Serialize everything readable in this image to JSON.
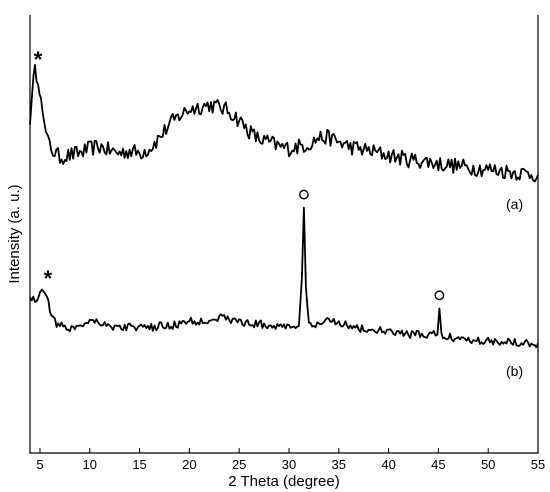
{
  "chart_data": {
    "type": "line",
    "xlabel": "2 Theta (degree)",
    "ylabel": "Intensity (a. u.)",
    "xlim": [
      4,
      55
    ],
    "ylim": [
      0,
      1
    ],
    "xticks": [
      5,
      10,
      15,
      20,
      25,
      30,
      35,
      40,
      45,
      50,
      55
    ],
    "grid": false,
    "series": [
      {
        "name": "(a)",
        "x": [
          4.0,
          4.2,
          4.5,
          4.8,
          5.1,
          5.4,
          5.8,
          6.3,
          7.0,
          8.0,
          9.0,
          10.0,
          11.0,
          12.0,
          13.0,
          14.0,
          15.0,
          16.0,
          17.0,
          18.0,
          19.0,
          20.0,
          21.0,
          22.0,
          23.0,
          24.0,
          25.0,
          26.0,
          27.0,
          28.0,
          29.0,
          30.0,
          31.0,
          32.0,
          33.0,
          34.0,
          35.0,
          36.0,
          37.0,
          38.0,
          39.0,
          40.0,
          41.0,
          42.0,
          43.0,
          44.0,
          45.0,
          46.0,
          47.0,
          48.0,
          49.0,
          50.0,
          51.0,
          52.0,
          53.0,
          54.0,
          55.0
        ],
        "y": [
          0.75,
          0.83,
          0.87,
          0.86,
          0.81,
          0.75,
          0.71,
          0.69,
          0.675,
          0.68,
          0.685,
          0.695,
          0.7,
          0.69,
          0.685,
          0.69,
          0.685,
          0.695,
          0.72,
          0.75,
          0.77,
          0.785,
          0.79,
          0.795,
          0.79,
          0.78,
          0.76,
          0.735,
          0.715,
          0.71,
          0.7,
          0.695,
          0.7,
          0.705,
          0.72,
          0.72,
          0.71,
          0.7,
          0.695,
          0.69,
          0.685,
          0.68,
          0.675,
          0.67,
          0.668,
          0.665,
          0.66,
          0.658,
          0.655,
          0.652,
          0.65,
          0.648,
          0.645,
          0.643,
          0.64,
          0.638,
          0.635
        ]
      },
      {
        "name": "(b)",
        "x": [
          4.0,
          4.5,
          5.0,
          5.4,
          5.7,
          6.0,
          6.5,
          7.0,
          8.0,
          9.0,
          10.0,
          11.0,
          12.0,
          13.0,
          14.0,
          15.0,
          16.0,
          17.0,
          18.0,
          19.0,
          20.0,
          21.0,
          22.0,
          23.0,
          24.0,
          25.0,
          26.0,
          27.0,
          28.0,
          29.0,
          30.0,
          31.0,
          31.3,
          31.5,
          31.7,
          32.0,
          33.0,
          34.0,
          35.0,
          36.0,
          37.0,
          38.0,
          39.0,
          40.0,
          41.0,
          42.0,
          43.0,
          44.0,
          44.9,
          45.1,
          45.3,
          45.6,
          46.0,
          47.0,
          48.0,
          49.0,
          50.0,
          51.0,
          52.0,
          53.0,
          54.0,
          55.0
        ],
        "y": [
          0.355,
          0.35,
          0.36,
          0.375,
          0.36,
          0.33,
          0.3,
          0.29,
          0.285,
          0.29,
          0.305,
          0.3,
          0.29,
          0.285,
          0.29,
          0.285,
          0.285,
          0.29,
          0.29,
          0.295,
          0.3,
          0.3,
          0.305,
          0.31,
          0.305,
          0.3,
          0.295,
          0.295,
          0.29,
          0.29,
          0.29,
          0.29,
          0.4,
          0.56,
          0.38,
          0.29,
          0.29,
          0.305,
          0.3,
          0.29,
          0.285,
          0.28,
          0.28,
          0.275,
          0.275,
          0.27,
          0.27,
          0.27,
          0.27,
          0.33,
          0.27,
          0.265,
          0.265,
          0.262,
          0.26,
          0.258,
          0.256,
          0.255,
          0.255,
          0.253,
          0.252,
          0.25
        ]
      }
    ],
    "annotations": [
      {
        "text": "*",
        "x": 4.5,
        "y": 0.9,
        "series": "(a)"
      },
      {
        "text": "*",
        "x": 5.5,
        "y": 0.4,
        "series": "(b)"
      },
      {
        "text": "○",
        "x": 31.5,
        "y": 0.59,
        "series": "(b)"
      },
      {
        "text": "○",
        "x": 45.1,
        "y": 0.36,
        "series": "(b)"
      }
    ],
    "series_labels": [
      {
        "text": "(a)",
        "series": 0
      },
      {
        "text": "(b)",
        "series": 1
      }
    ]
  }
}
